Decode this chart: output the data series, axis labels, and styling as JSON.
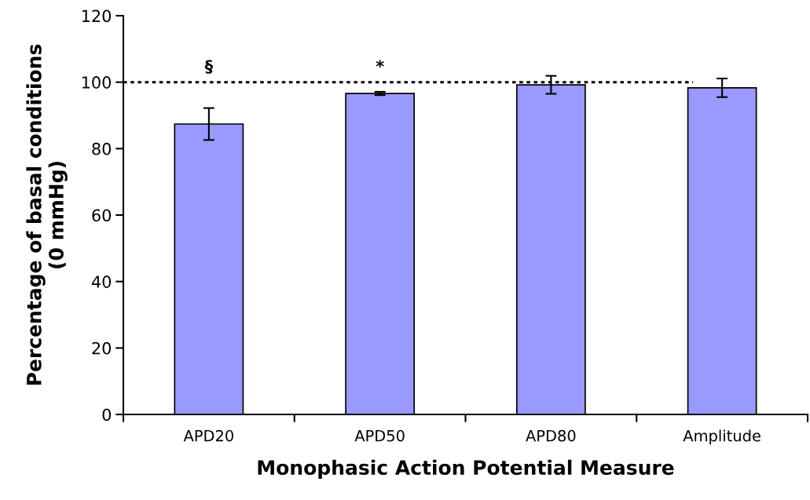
{
  "chart_data": {
    "type": "bar",
    "xlabel": "Monophasic Action Potential Measure",
    "ylabel": "Percentage of basal conditions\n(0 mmHg)",
    "categories": [
      "APD20",
      "APD50",
      "APD80",
      "Amplitude"
    ],
    "values": [
      87.4,
      96.6,
      99.2,
      98.3
    ],
    "errors": [
      4.8,
      0.5,
      2.7,
      2.8
    ],
    "color": "#9999ff",
    "ylim": [
      0,
      120
    ],
    "yticks": [
      0,
      20,
      40,
      60,
      80,
      100,
      120
    ],
    "grid": false,
    "ref_lines": [
      {
        "axis": "y",
        "value": 100,
        "line_style": "dotted",
        "color": "#000000"
      }
    ],
    "annotations": [
      "§",
      "*"
    ]
  }
}
